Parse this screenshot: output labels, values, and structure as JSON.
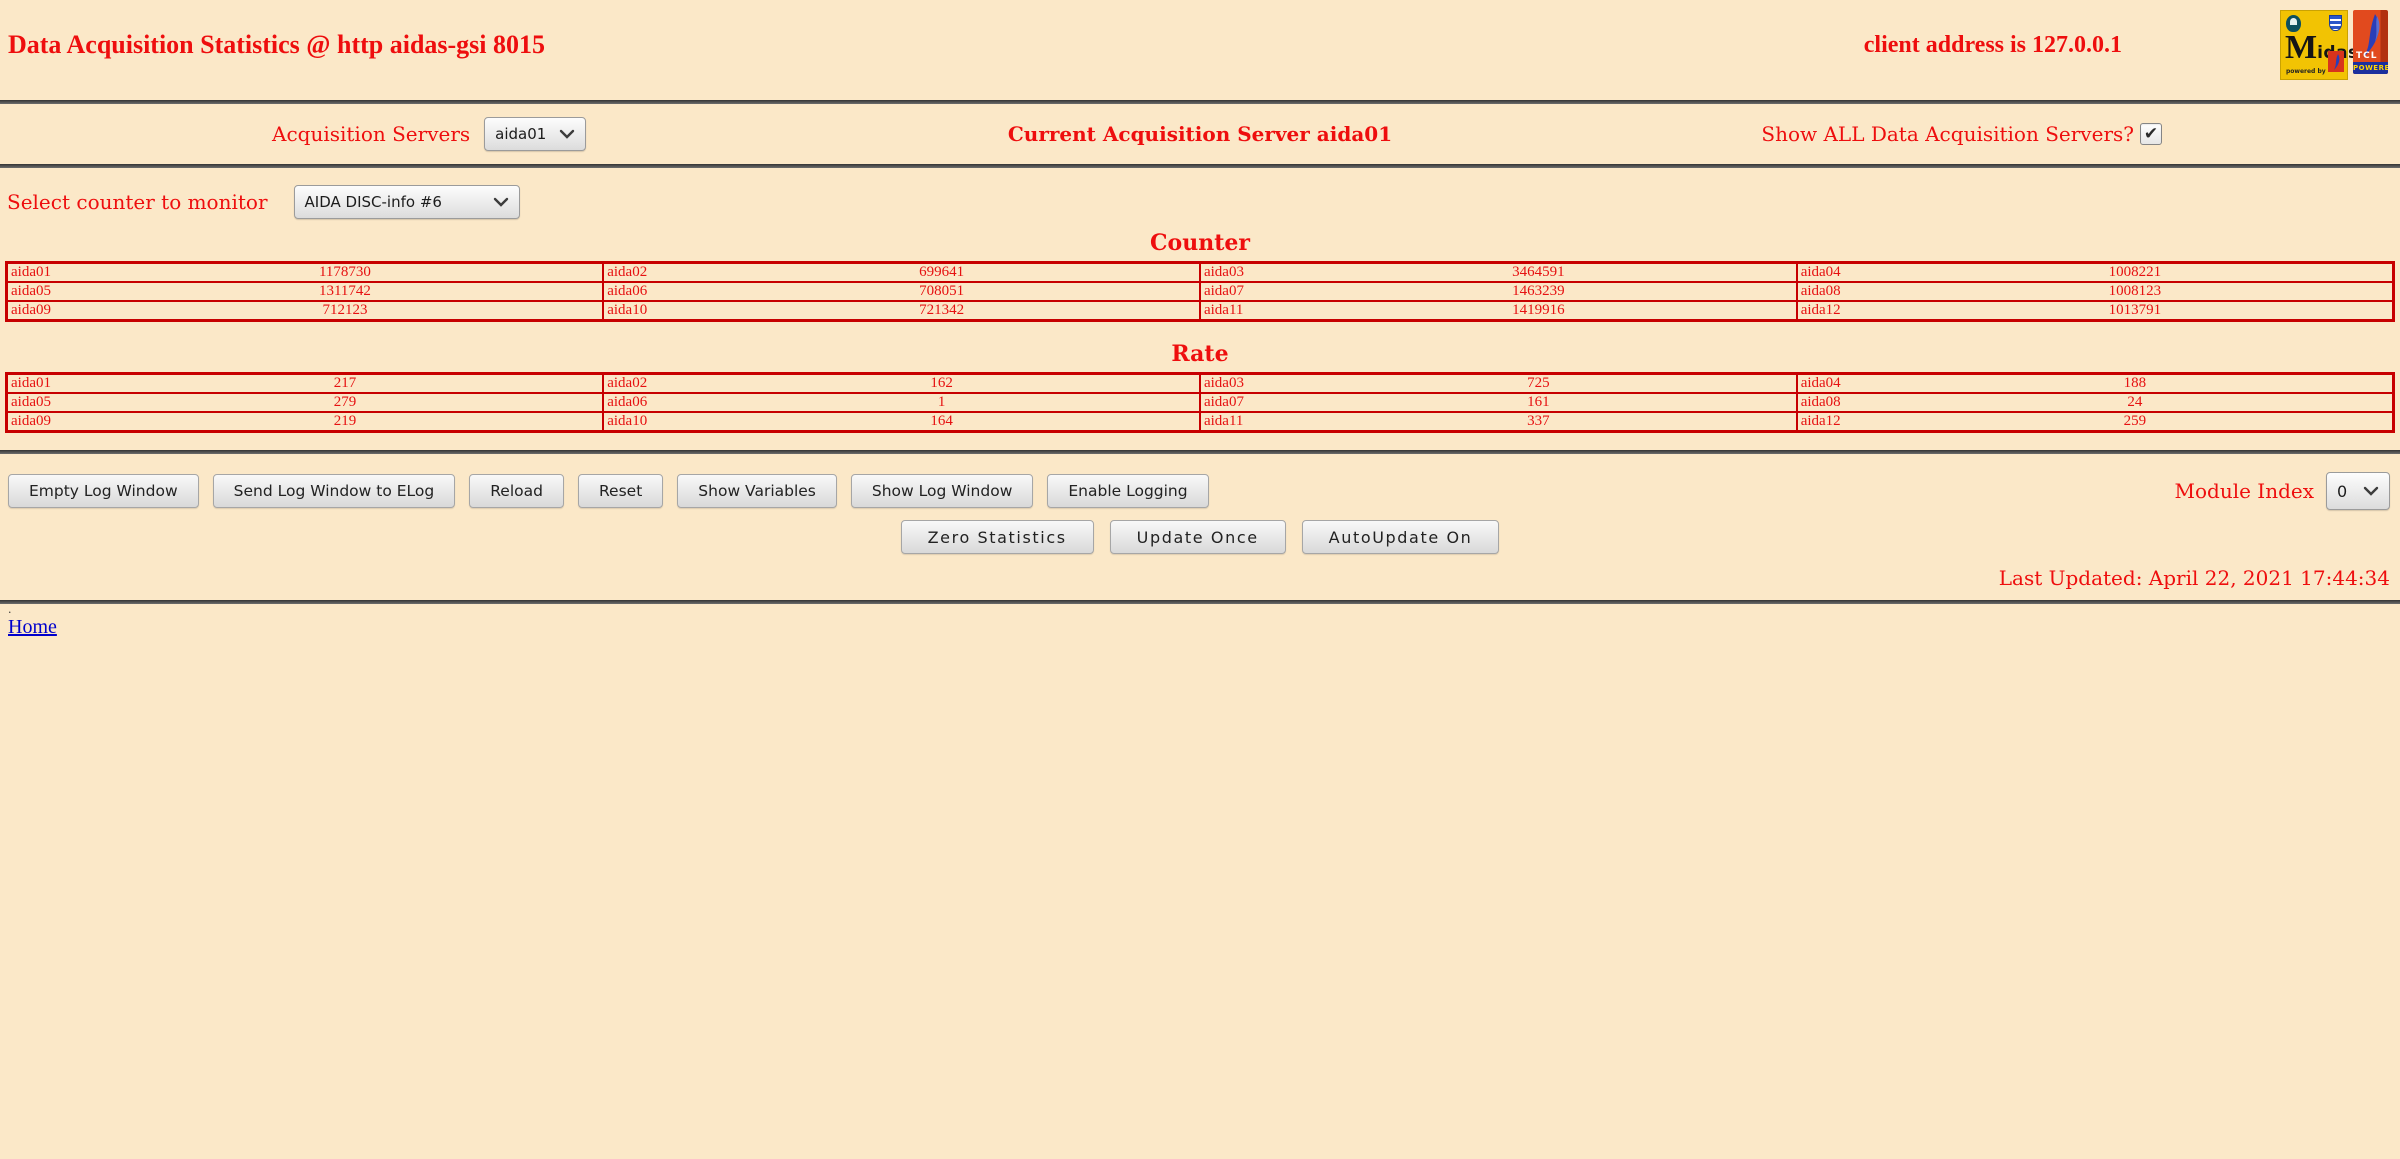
{
  "header": {
    "title": "Data Acquisition Statistics @ http aidas-gsi 8015",
    "client_address": "client address is 127.0.0.1"
  },
  "logos": {
    "midas": {
      "m": "M",
      "rest": "idas",
      "powered_by": "powered by"
    },
    "tcl": {
      "name": "TCL",
      "powered": "POWERED"
    }
  },
  "icons": {
    "checkmark": "✔"
  },
  "server_bar": {
    "label": "Acquisition Servers",
    "server_select_value": "aida01",
    "current_server_text": "Current Acquisition Server aida01",
    "show_all_label": "Show ALL Data Acquisition Servers?",
    "show_all_checked": true
  },
  "counter_select": {
    "label": "Select counter to monitor",
    "value": "AIDA DISC-info #6"
  },
  "tables": {
    "counter": {
      "title": "Counter",
      "rows": [
        [
          {
            "name": "aida01",
            "value": "1178730"
          },
          {
            "name": "aida02",
            "value": "699641"
          },
          {
            "name": "aida03",
            "value": "3464591"
          },
          {
            "name": "aida04",
            "value": "1008221"
          }
        ],
        [
          {
            "name": "aida05",
            "value": "1311742"
          },
          {
            "name": "aida06",
            "value": "708051"
          },
          {
            "name": "aida07",
            "value": "1463239"
          },
          {
            "name": "aida08",
            "value": "1008123"
          }
        ],
        [
          {
            "name": "aida09",
            "value": "712123"
          },
          {
            "name": "aida10",
            "value": "721342"
          },
          {
            "name": "aida11",
            "value": "1419916"
          },
          {
            "name": "aida12",
            "value": "1013791"
          }
        ]
      ]
    },
    "rate": {
      "title": "Rate",
      "rows": [
        [
          {
            "name": "aida01",
            "value": "217"
          },
          {
            "name": "aida02",
            "value": "162"
          },
          {
            "name": "aida03",
            "value": "725"
          },
          {
            "name": "aida04",
            "value": "188"
          }
        ],
        [
          {
            "name": "aida05",
            "value": "279"
          },
          {
            "name": "aida06",
            "value": "1"
          },
          {
            "name": "aida07",
            "value": "161"
          },
          {
            "name": "aida08",
            "value": "24"
          }
        ],
        [
          {
            "name": "aida09",
            "value": "219"
          },
          {
            "name": "aida10",
            "value": "164"
          },
          {
            "name": "aida11",
            "value": "337"
          },
          {
            "name": "aida12",
            "value": "259"
          }
        ]
      ]
    }
  },
  "toolbar": {
    "buttons": [
      "Empty Log Window",
      "Send Log Window to ELog",
      "Reload",
      "Reset",
      "Show Variables",
      "Show Log Window",
      "Enable Logging"
    ],
    "module_index_label": "Module Index",
    "module_index_value": "0"
  },
  "update_bar": {
    "buttons": [
      "Zero Statistics",
      "Update Once",
      "AutoUpdate On"
    ]
  },
  "footer": {
    "last_updated": "Last Updated: April 22, 2021 17:44:34",
    "dot": ".",
    "home_label": "Home"
  },
  "colors": {
    "background": "#FBE8C8",
    "red_text": "#EE0E0E",
    "table_border": "#C70000",
    "link_blue": "#0000CC"
  }
}
